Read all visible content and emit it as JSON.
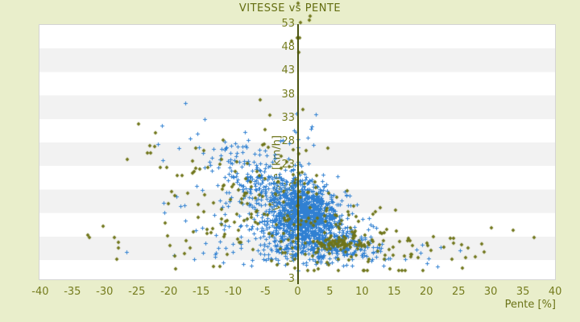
{
  "window": {
    "title": "VITESSE vs PENTE"
  },
  "chart_data": {
    "type": "scatter",
    "title": "VITESSE vs PENTE",
    "xlabel": "Pente [%]",
    "ylabel": "Vitesse [km/h]",
    "xlim": [
      -40,
      40
    ],
    "ylim": [
      3,
      53
    ],
    "x_ticks": [
      -40,
      -35,
      -30,
      -25,
      -20,
      -15,
      -10,
      -5,
      0,
      5,
      10,
      15,
      20,
      25,
      30,
      35,
      40
    ],
    "y_ticks": [
      53,
      48,
      43,
      38,
      33,
      28,
      23,
      18,
      13,
      8,
      3
    ],
    "y_axis_bottom_edge_label": "3",
    "grid": "horizontal-stripes",
    "legend": "none",
    "y_axis_crosses_x_at": 0,
    "colors": {
      "background": "#e9eecb",
      "plot_bg": "#ffffff",
      "stripe": "#f2f2f2",
      "plot_border": "#d4d4d4",
      "axis_line": "#4b5410",
      "title_text": "#636d10",
      "tick_text": "#757c1e",
      "series_blue": "#3080d2",
      "series_olive": "#6f751a"
    },
    "seed": 42,
    "series": [
      {
        "name": "points-bleus-vitesse",
        "marker": "plus",
        "color_key": "series_blue",
        "clusters": [
          {
            "n": 620,
            "mx": 1.3,
            "sx": 2.3,
            "my": 13.2,
            "sy": 3.0,
            "rho": -0.2
          },
          {
            "n": 400,
            "mx": 0.5,
            "sx": 4.0,
            "my": 10.0,
            "sy": 3.4,
            "rho": -0.35
          },
          {
            "n": 240,
            "mx": -2.5,
            "sx": 5.0,
            "my": 16.5,
            "sy": 4.5,
            "rho": -0.55
          },
          {
            "n": 190,
            "mx": 3.5,
            "sx": 4.5,
            "my": 6.8,
            "sy": 2.0,
            "rho": -0.15
          },
          {
            "n": 110,
            "mx": -6.0,
            "sx": 5.5,
            "my": 21.0,
            "sy": 4.5,
            "rho": -0.6
          },
          {
            "n": 70,
            "mx": 4.0,
            "sx": 6.5,
            "my": 4.6,
            "sy": 1.3,
            "rho": 0
          },
          {
            "n": 45,
            "mx": -1.0,
            "sx": 10.0,
            "my": 4.2,
            "sy": 1.5,
            "rho": 0
          },
          {
            "n": 35,
            "mx": -11.0,
            "sx": 5.5,
            "my": 12.0,
            "sy": 4.5,
            "rho": -0.5
          },
          {
            "n": 12,
            "mx": 0.5,
            "sx": 2.5,
            "my": 29.0,
            "sy": 3.0,
            "rho": 0
          }
        ]
      },
      {
        "name": "points-olive-vitesse",
        "marker": "diamond",
        "color_key": "series_olive",
        "clusters": [
          {
            "n": 110,
            "mx": 0.0,
            "sx": 9.0,
            "my": 12.0,
            "sy": 6.0,
            "rho": -0.5
          },
          {
            "n": 55,
            "mx": 7.0,
            "sx": 2.3,
            "my": 6.3,
            "sy": 0.55,
            "rho": 0
          },
          {
            "n": 65,
            "mx": -8.0,
            "sx": 8.5,
            "my": 17.0,
            "sy": 6.5,
            "rho": -0.6
          },
          {
            "n": 45,
            "mx": 8.0,
            "sx": 6.5,
            "my": 7.5,
            "sy": 2.6,
            "rho": -0.2
          },
          {
            "n": 40,
            "mx": 0.0,
            "sx": 15.0,
            "my": 4.6,
            "sy": 1.8,
            "rho": 0
          },
          {
            "n": 10,
            "mx": -1.0,
            "sx": 3.0,
            "my": 30.0,
            "sy": 7.0,
            "rho": 0
          },
          {
            "n": 8,
            "mx": 0.5,
            "sx": 2.5,
            "my": 51.0,
            "sy": 3.5,
            "rho": 0
          },
          {
            "n": 16,
            "mx": 25.0,
            "sx": 6.0,
            "my": 6.0,
            "sy": 2.2,
            "rho": 0
          },
          {
            "n": 12,
            "mx": -25.0,
            "sx": 6.0,
            "my": 6.5,
            "sy": 3.0,
            "rho": 0
          }
        ]
      }
    ]
  }
}
